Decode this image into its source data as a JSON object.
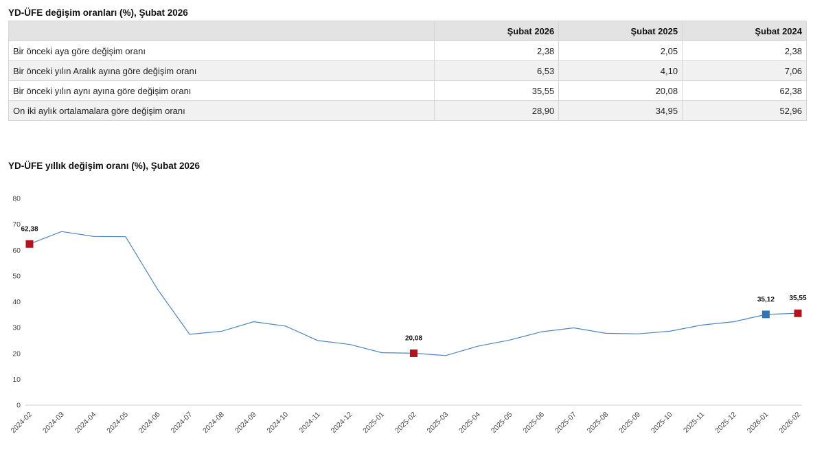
{
  "table": {
    "title": "YD-ÜFE değişim oranları (%), Şubat 2026",
    "columns": [
      "",
      "Şubat 2026",
      "Şubat 2025",
      "Şubat 2024"
    ],
    "rows": [
      [
        "Bir önceki aya göre değişim oranı",
        "2,38",
        "2,05",
        "2,38"
      ],
      [
        "Bir önceki yılın Aralık ayına göre değişim oranı",
        "6,53",
        "4,10",
        "7,06"
      ],
      [
        "Bir önceki yılın aynı ayına göre değişim oranı",
        "35,55",
        "20,08",
        "62,38"
      ],
      [
        "On iki aylık ortalamalara göre değişim oranı",
        "28,90",
        "34,95",
        "52,96"
      ]
    ]
  },
  "chart_data": {
    "type": "line",
    "title": "YD-ÜFE yıllık değişim oranı (%), Şubat 2026",
    "xlabel": "",
    "ylabel": "",
    "x": [
      "2024-02",
      "2024-03",
      "2024-04",
      "2024-05",
      "2024-06",
      "2024-07",
      "2024-08",
      "2024-09",
      "2024-10",
      "2024-11",
      "2024-12",
      "2025-01",
      "2025-02",
      "2025-03",
      "2025-04",
      "2025-05",
      "2025-06",
      "2025-07",
      "2025-08",
      "2025-09",
      "2025-10",
      "2025-11",
      "2025-12",
      "2026-01",
      "2026-02"
    ],
    "series": [
      {
        "values": [
          62.38,
          67.2,
          65.3,
          65.2,
          44.8,
          27.4,
          28.6,
          32.3,
          30.6,
          25.0,
          23.5,
          20.3,
          20.08,
          19.2,
          22.8,
          25.2,
          28.4,
          29.9,
          27.8,
          27.6,
          28.6,
          31.0,
          32.3,
          35.12,
          35.55
        ],
        "color": "#4a86c5"
      }
    ],
    "highlights": [
      {
        "x": "2024-02",
        "value": 62.38,
        "label": "62,38",
        "color": "#b5121b"
      },
      {
        "x": "2025-02",
        "value": 20.08,
        "label": "20,08",
        "color": "#b5121b"
      },
      {
        "x": "2026-01",
        "value": 35.12,
        "label": "35,12",
        "color": "#2e75b6"
      },
      {
        "x": "2026-02",
        "value": 35.55,
        "label": "35,55",
        "color": "#b5121b"
      }
    ],
    "ylim": [
      0,
      80
    ],
    "yticks": [
      0,
      10,
      20,
      30,
      40,
      50,
      60,
      70,
      80
    ],
    "grid": false,
    "legend": "none"
  }
}
